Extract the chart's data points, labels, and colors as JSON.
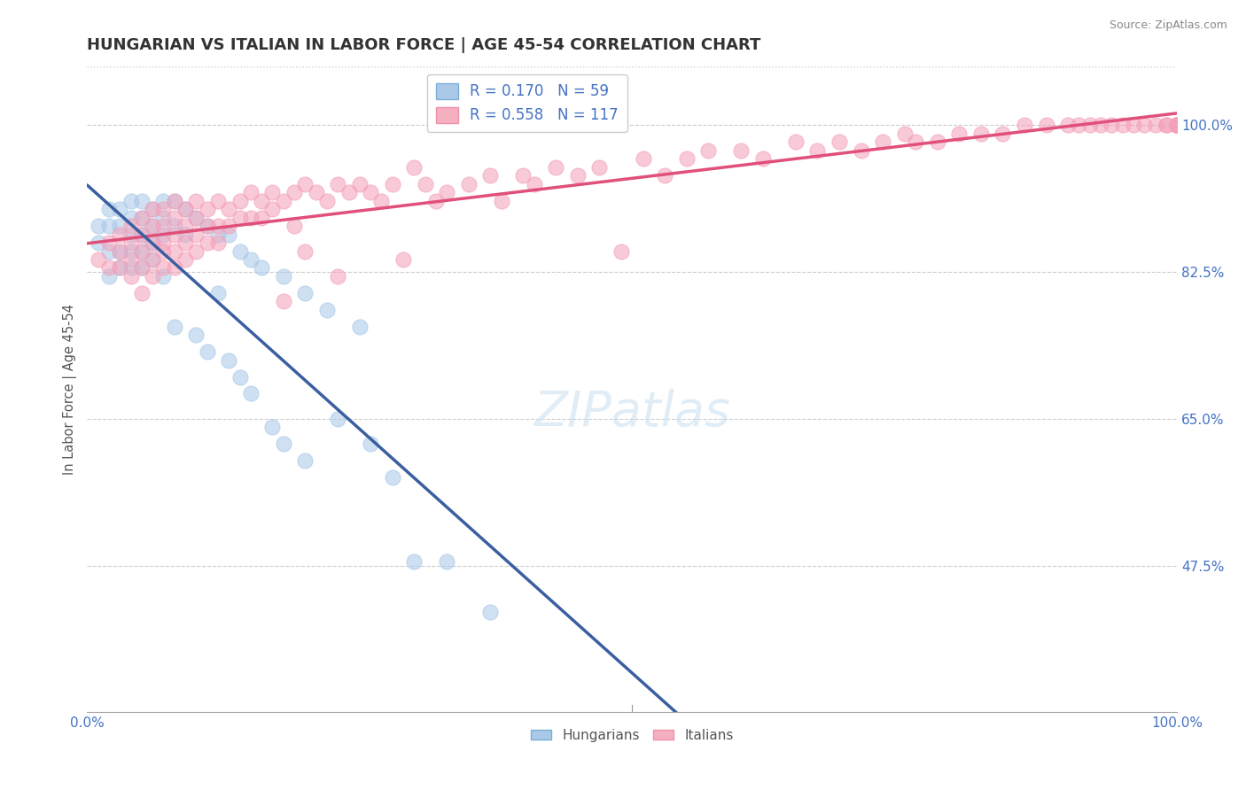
{
  "title": "HUNGARIAN VS ITALIAN IN LABOR FORCE | AGE 45-54 CORRELATION CHART",
  "source_text": "Source: ZipAtlas.com",
  "ylabel": "In Labor Force | Age 45-54",
  "xlim": [
    0.0,
    1.0
  ],
  "ylim": [
    0.3,
    1.07
  ],
  "yticks": [
    0.475,
    0.65,
    0.825,
    1.0
  ],
  "ytick_labels": [
    "47.5%",
    "65.0%",
    "82.5%",
    "100.0%"
  ],
  "title_color": "#333333",
  "axis_color": "#4472c4",
  "grid_color": "#cccccc",
  "watermark_text": "ZIPatlas",
  "blue_color": "#a8c8e8",
  "pink_color": "#f4a0b8",
  "blue_line_color": "#3a5fa0",
  "pink_line_color": "#e0507a",
  "blue_scatter": [
    [
      0.01,
      0.88
    ],
    [
      0.01,
      0.86
    ],
    [
      0.02,
      0.9
    ],
    [
      0.02,
      0.88
    ],
    [
      0.02,
      0.85
    ],
    [
      0.02,
      0.82
    ],
    [
      0.03,
      0.9
    ],
    [
      0.03,
      0.88
    ],
    [
      0.03,
      0.85
    ],
    [
      0.03,
      0.83
    ],
    [
      0.04,
      0.91
    ],
    [
      0.04,
      0.89
    ],
    [
      0.04,
      0.87
    ],
    [
      0.04,
      0.85
    ],
    [
      0.04,
      0.83
    ],
    [
      0.05,
      0.91
    ],
    [
      0.05,
      0.89
    ],
    [
      0.05,
      0.87
    ],
    [
      0.05,
      0.85
    ],
    [
      0.05,
      0.83
    ],
    [
      0.06,
      0.9
    ],
    [
      0.06,
      0.88
    ],
    [
      0.06,
      0.86
    ],
    [
      0.06,
      0.84
    ],
    [
      0.07,
      0.91
    ],
    [
      0.07,
      0.89
    ],
    [
      0.07,
      0.87
    ],
    [
      0.07,
      0.82
    ],
    [
      0.08,
      0.91
    ],
    [
      0.08,
      0.88
    ],
    [
      0.08,
      0.76
    ],
    [
      0.09,
      0.9
    ],
    [
      0.09,
      0.87
    ],
    [
      0.1,
      0.89
    ],
    [
      0.1,
      0.75
    ],
    [
      0.11,
      0.88
    ],
    [
      0.11,
      0.73
    ],
    [
      0.12,
      0.87
    ],
    [
      0.12,
      0.8
    ],
    [
      0.13,
      0.87
    ],
    [
      0.13,
      0.72
    ],
    [
      0.14,
      0.85
    ],
    [
      0.14,
      0.7
    ],
    [
      0.15,
      0.84
    ],
    [
      0.15,
      0.68
    ],
    [
      0.16,
      0.83
    ],
    [
      0.17,
      0.64
    ],
    [
      0.18,
      0.82
    ],
    [
      0.18,
      0.62
    ],
    [
      0.2,
      0.8
    ],
    [
      0.2,
      0.6
    ],
    [
      0.22,
      0.78
    ],
    [
      0.23,
      0.65
    ],
    [
      0.25,
      0.76
    ],
    [
      0.26,
      0.62
    ],
    [
      0.28,
      0.58
    ],
    [
      0.3,
      0.48
    ],
    [
      0.33,
      0.48
    ],
    [
      0.37,
      0.42
    ]
  ],
  "pink_scatter": [
    [
      0.01,
      0.84
    ],
    [
      0.02,
      0.86
    ],
    [
      0.02,
      0.83
    ],
    [
      0.03,
      0.87
    ],
    [
      0.03,
      0.85
    ],
    [
      0.03,
      0.83
    ],
    [
      0.04,
      0.88
    ],
    [
      0.04,
      0.86
    ],
    [
      0.04,
      0.84
    ],
    [
      0.04,
      0.82
    ],
    [
      0.05,
      0.89
    ],
    [
      0.05,
      0.87
    ],
    [
      0.05,
      0.85
    ],
    [
      0.05,
      0.83
    ],
    [
      0.05,
      0.8
    ],
    [
      0.06,
      0.9
    ],
    [
      0.06,
      0.88
    ],
    [
      0.06,
      0.86
    ],
    [
      0.06,
      0.84
    ],
    [
      0.06,
      0.82
    ],
    [
      0.07,
      0.9
    ],
    [
      0.07,
      0.88
    ],
    [
      0.07,
      0.86
    ],
    [
      0.07,
      0.85
    ],
    [
      0.07,
      0.83
    ],
    [
      0.08,
      0.91
    ],
    [
      0.08,
      0.89
    ],
    [
      0.08,
      0.87
    ],
    [
      0.08,
      0.85
    ],
    [
      0.08,
      0.83
    ],
    [
      0.09,
      0.9
    ],
    [
      0.09,
      0.88
    ],
    [
      0.09,
      0.86
    ],
    [
      0.09,
      0.84
    ],
    [
      0.1,
      0.91
    ],
    [
      0.1,
      0.89
    ],
    [
      0.1,
      0.87
    ],
    [
      0.1,
      0.85
    ],
    [
      0.11,
      0.9
    ],
    [
      0.11,
      0.88
    ],
    [
      0.11,
      0.86
    ],
    [
      0.12,
      0.91
    ],
    [
      0.12,
      0.88
    ],
    [
      0.12,
      0.86
    ],
    [
      0.13,
      0.9
    ],
    [
      0.13,
      0.88
    ],
    [
      0.14,
      0.91
    ],
    [
      0.14,
      0.89
    ],
    [
      0.15,
      0.92
    ],
    [
      0.15,
      0.89
    ],
    [
      0.16,
      0.91
    ],
    [
      0.16,
      0.89
    ],
    [
      0.17,
      0.92
    ],
    [
      0.17,
      0.9
    ],
    [
      0.18,
      0.91
    ],
    [
      0.18,
      0.79
    ],
    [
      0.19,
      0.92
    ],
    [
      0.19,
      0.88
    ],
    [
      0.2,
      0.93
    ],
    [
      0.2,
      0.85
    ],
    [
      0.21,
      0.92
    ],
    [
      0.22,
      0.91
    ],
    [
      0.23,
      0.93
    ],
    [
      0.23,
      0.82
    ],
    [
      0.24,
      0.92
    ],
    [
      0.25,
      0.93
    ],
    [
      0.26,
      0.92
    ],
    [
      0.27,
      0.91
    ],
    [
      0.28,
      0.93
    ],
    [
      0.29,
      0.84
    ],
    [
      0.3,
      0.95
    ],
    [
      0.31,
      0.93
    ],
    [
      0.32,
      0.91
    ],
    [
      0.33,
      0.92
    ],
    [
      0.35,
      0.93
    ],
    [
      0.37,
      0.94
    ],
    [
      0.38,
      0.91
    ],
    [
      0.4,
      0.94
    ],
    [
      0.41,
      0.93
    ],
    [
      0.43,
      0.95
    ],
    [
      0.45,
      0.94
    ],
    [
      0.47,
      0.95
    ],
    [
      0.49,
      0.85
    ],
    [
      0.51,
      0.96
    ],
    [
      0.53,
      0.94
    ],
    [
      0.55,
      0.96
    ],
    [
      0.57,
      0.97
    ],
    [
      0.6,
      0.97
    ],
    [
      0.62,
      0.96
    ],
    [
      0.65,
      0.98
    ],
    [
      0.67,
      0.97
    ],
    [
      0.69,
      0.98
    ],
    [
      0.71,
      0.97
    ],
    [
      0.73,
      0.98
    ],
    [
      0.75,
      0.99
    ],
    [
      0.76,
      0.98
    ],
    [
      0.78,
      0.98
    ],
    [
      0.8,
      0.99
    ],
    [
      0.82,
      0.99
    ],
    [
      0.84,
      0.99
    ],
    [
      0.86,
      1.0
    ],
    [
      0.88,
      1.0
    ],
    [
      0.9,
      1.0
    ],
    [
      0.91,
      1.0
    ],
    [
      0.92,
      1.0
    ],
    [
      0.93,
      1.0
    ],
    [
      0.94,
      1.0
    ],
    [
      0.95,
      1.0
    ],
    [
      0.96,
      1.0
    ],
    [
      0.97,
      1.0
    ],
    [
      0.98,
      1.0
    ],
    [
      0.99,
      1.0
    ],
    [
      0.99,
      1.0
    ],
    [
      1.0,
      1.0
    ],
    [
      1.0,
      1.0
    ],
    [
      1.0,
      1.0
    ],
    [
      1.0,
      1.0
    ],
    [
      1.0,
      1.0
    ],
    [
      1.0,
      1.0
    ]
  ]
}
